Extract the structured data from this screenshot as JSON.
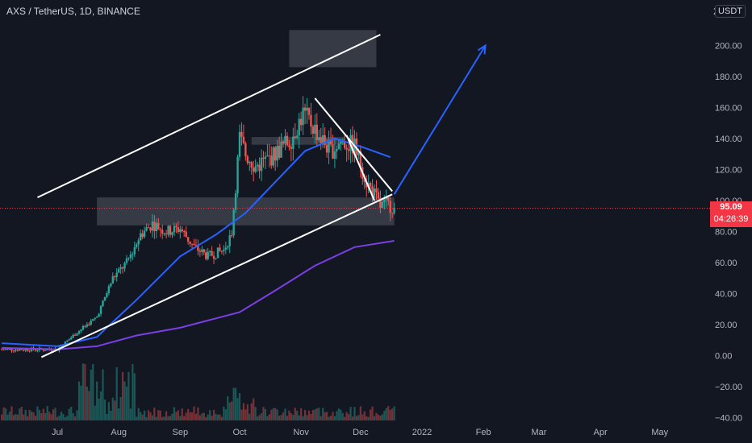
{
  "header": {
    "symbol_title": "AXS / TetherUS, 1D, BINANCE",
    "currency": "USDT",
    "axis_top_digit": "2"
  },
  "last_price": {
    "value": "95.09",
    "countdown": "04:26:39",
    "price": 95.09
  },
  "colors": {
    "background": "#131722",
    "up": "#26a69a",
    "down": "#ef5350",
    "ma_fast": "#2962ff",
    "ma_slow": "#7b3fe4",
    "trend": "#ffffff",
    "projection": "#2962ff",
    "zone": "#787b86"
  },
  "chart_data": {
    "type": "candlestick",
    "title": "AXS / TetherUS, 1D, BINANCE",
    "y_ticks": [
      "200.00",
      "180.00",
      "160.00",
      "140.00",
      "120.00",
      "100.00",
      "80.00",
      "60.00",
      "40.00",
      "20.00",
      "0.00",
      "−20.00",
      "−40.00"
    ],
    "y_tick_values": [
      200,
      180,
      160,
      140,
      120,
      100,
      80,
      60,
      40,
      20,
      0,
      -20,
      -40
    ],
    "ylim": [
      -40,
      210
    ],
    "x_labels": [
      "Jul",
      "Aug",
      "Sep",
      "Oct",
      "Nov",
      "Dec",
      "2022",
      "Feb",
      "Mar",
      "Apr",
      "May"
    ],
    "x_label_days": [
      0,
      31,
      62,
      92,
      123,
      153,
      184,
      215,
      243,
      274,
      304
    ],
    "xlim_days": [
      -28,
      335
    ],
    "price_path_days": [
      -28,
      0,
      10,
      20,
      28,
      35,
      42,
      48,
      55,
      62,
      69,
      76,
      84,
      88,
      92,
      95,
      100,
      108,
      118,
      124,
      128,
      133,
      138,
      143,
      150,
      156,
      160,
      163,
      166,
      170
    ],
    "price_path_values": [
      4,
      4,
      15,
      25,
      50,
      60,
      78,
      85,
      80,
      82,
      70,
      64,
      68,
      80,
      140,
      130,
      122,
      128,
      140,
      156,
      150,
      140,
      132,
      138,
      135,
      112,
      104,
      96,
      98,
      95.09
    ],
    "ma_fast": {
      "days": [
        -28,
        0,
        20,
        40,
        62,
        80,
        95,
        110,
        125,
        140,
        155,
        168
      ],
      "values": [
        8,
        6,
        12,
        36,
        64,
        78,
        92,
        112,
        132,
        140,
        134,
        128
      ]
    },
    "ma_slow": {
      "days": [
        -28,
        0,
        20,
        40,
        62,
        80,
        92,
        110,
        130,
        150,
        170
      ],
      "values": [
        5,
        4,
        6,
        13,
        18,
        24,
        28,
        42,
        58,
        70,
        74
      ]
    },
    "trendlines": [
      {
        "days": [
          -10,
          163
        ],
        "values": [
          102,
          207
        ]
      },
      {
        "days": [
          -8,
          169
        ],
        "values": [
          -1,
          104
        ]
      },
      {
        "days": [
          130,
          169
        ],
        "values": [
          166,
          106
        ]
      },
      {
        "days": [
          146,
          160
        ],
        "values": [
          142,
          100
        ]
      }
    ],
    "zones": [
      {
        "days": [
          117,
          161
        ],
        "values": [
          186,
          210
        ]
      },
      {
        "days": [
          20,
          170
        ],
        "values": [
          84,
          102
        ]
      },
      {
        "days": [
          98,
          145
        ],
        "values": [
          136,
          141
        ]
      }
    ],
    "projection": {
      "days": [
        170,
        216
      ],
      "values": [
        104,
        200
      ]
    },
    "volume_bars": 170
  }
}
